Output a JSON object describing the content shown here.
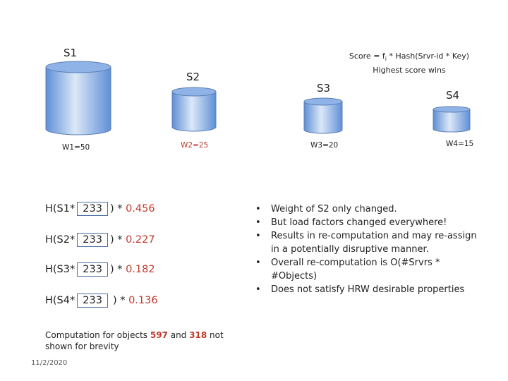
{
  "servers": [
    {
      "label": "S1",
      "weight": "W1=50",
      "weight_color": "#222222"
    },
    {
      "label": "S2",
      "weight": "W2=25",
      "weight_color": "#c0392b"
    },
    {
      "label": "S3",
      "weight": "W3=20",
      "weight_color": "#222222"
    },
    {
      "label": "S4",
      "weight": "W4=15",
      "weight_color": "#222222"
    }
  ],
  "score": {
    "line1_prefix": "Score = f",
    "line1_sub": "i",
    "line1_suffix": " * Hash(Srvr-id * Key)",
    "line2": "Highest score wins"
  },
  "hash_rows": [
    {
      "prefix": "H(S1*",
      "key": "233",
      "mult": ") * ",
      "factor": "0.456"
    },
    {
      "prefix": "H(S2*",
      "key": "233",
      "mult": ") * ",
      "factor": "0.227"
    },
    {
      "prefix": "H(S3*",
      "key": "233",
      "mult": ") * ",
      "factor": "0.182"
    },
    {
      "prefix": "H(S4*",
      "key": "233",
      "mult": ") * ",
      "factor": "0.136"
    }
  ],
  "bullets": [
    "Weight of S2 only changed.",
    "But load factors changed everywhere!",
    "Results in re-computation and may re-assign in a potentially disruptive manner.",
    "Overall re-computation is O(#Srvrs * #Objects)",
    "Does not satisfy HRW desirable properties"
  ],
  "note": {
    "part1": "Computation for objects ",
    "obj1": "597",
    "part2": " and ",
    "obj2": "318",
    "part3": " not shown for brevity"
  },
  "date": "11/2/2020",
  "colors": {
    "cylinder_top": "#8fb3e6",
    "cylinder_body_light": "#dbe8f8",
    "cylinder_body_dark": "#5f8fd6",
    "cylinder_stroke": "#5b7fb5",
    "accent_red": "#c0392b",
    "box_border": "#4a6fa5"
  }
}
